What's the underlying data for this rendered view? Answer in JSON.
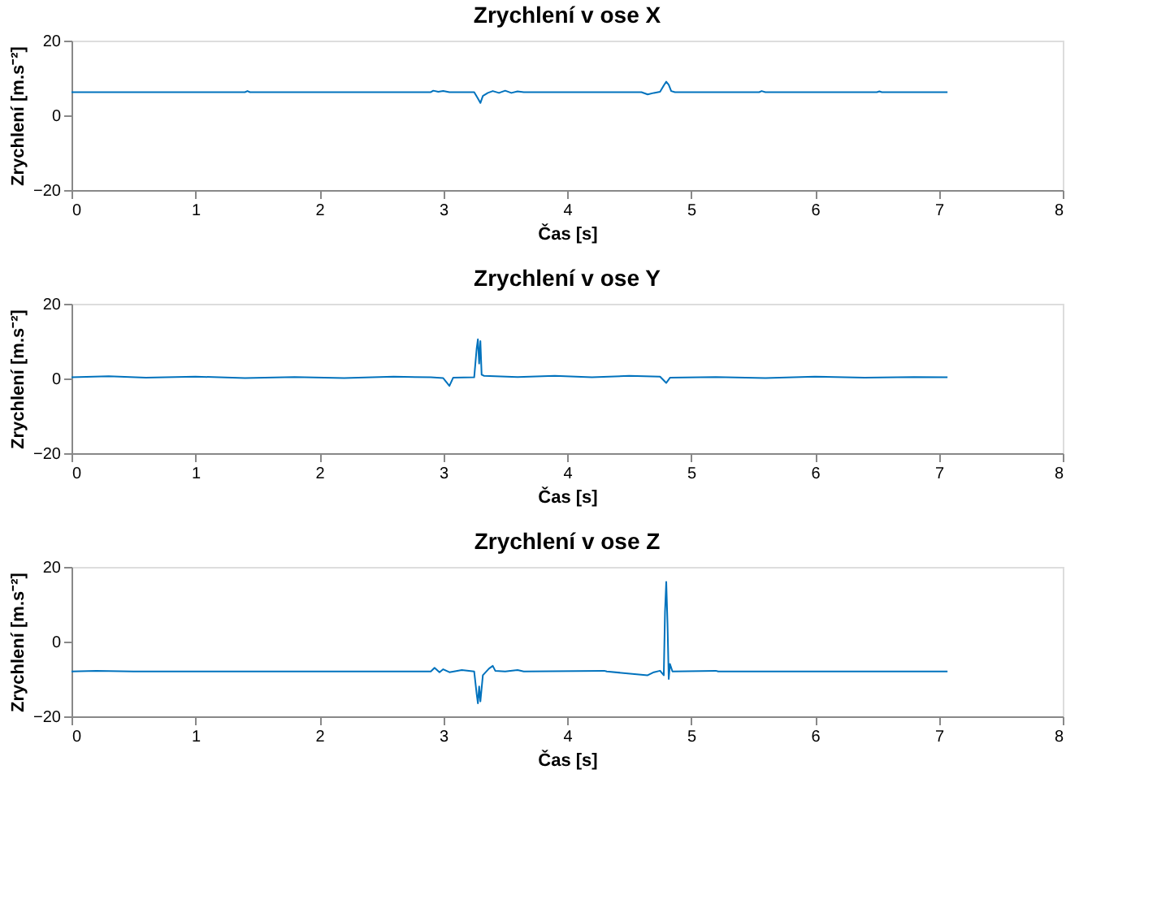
{
  "chart_data": [
    {
      "type": "line",
      "title": "Zrychlení v ose X",
      "xlabel": "Čas [s]",
      "ylabel": "Zrychlení [m.s⁻²]",
      "xlim": [
        0,
        8
      ],
      "xticks": [
        0,
        1,
        2,
        3,
        4,
        5,
        6,
        7,
        8
      ],
      "ylim": [
        -20,
        20
      ],
      "yticks": [
        -20,
        0,
        20
      ],
      "grid": false,
      "series": [
        {
          "color": "#0072bd",
          "x": [
            0,
            1.4,
            1.42,
            1.44,
            2.9,
            2.92,
            2.96,
            3.0,
            3.05,
            3.25,
            3.28,
            3.3,
            3.32,
            3.36,
            3.4,
            3.45,
            3.5,
            3.55,
            3.6,
            3.65,
            4.6,
            4.65,
            4.7,
            4.75,
            4.78,
            4.8,
            4.82,
            4.84,
            4.87,
            5.55,
            5.57,
            5.6,
            6.5,
            6.52,
            6.54,
            7.07
          ],
          "values": [
            6.2,
            6.2,
            6.5,
            6.2,
            6.2,
            6.6,
            6.3,
            6.5,
            6.2,
            6.2,
            4.5,
            3.3,
            5.2,
            6.0,
            6.5,
            6.0,
            6.6,
            6.0,
            6.4,
            6.2,
            6.2,
            5.6,
            6.0,
            6.3,
            8.0,
            9.0,
            8.2,
            6.5,
            6.2,
            6.2,
            6.5,
            6.2,
            6.2,
            6.4,
            6.2,
            6.2
          ]
        }
      ]
    },
    {
      "type": "line",
      "title": "Zrychlení v ose Y",
      "xlabel": "Čas [s]",
      "ylabel": "Zrychlení [m.s⁻²]",
      "xlim": [
        0,
        8
      ],
      "xticks": [
        0,
        1,
        2,
        3,
        4,
        5,
        6,
        7,
        8
      ],
      "ylim": [
        -20,
        20
      ],
      "yticks": [
        -20,
        0,
        20
      ],
      "grid": false,
      "series": [
        {
          "color": "#0072bd",
          "x": [
            0,
            0.3,
            0.6,
            1.0,
            1.4,
            1.8,
            2.2,
            2.6,
            2.9,
            3.0,
            3.05,
            3.08,
            3.25,
            3.27,
            3.28,
            3.29,
            3.3,
            3.31,
            3.33,
            3.6,
            3.9,
            4.2,
            4.5,
            4.75,
            4.8,
            4.83,
            5.2,
            5.6,
            6.0,
            6.4,
            6.8,
            7.07
          ],
          "values": [
            0.3,
            0.6,
            0.2,
            0.5,
            0.1,
            0.4,
            0.1,
            0.5,
            0.3,
            0.1,
            -2.0,
            0.2,
            0.3,
            8.0,
            10.5,
            4.0,
            10,
            1.0,
            0.7,
            0.4,
            0.7,
            0.3,
            0.7,
            0.5,
            -1.2,
            0.2,
            0.4,
            0.1,
            0.5,
            0.2,
            0.4,
            0.3
          ]
        }
      ]
    },
    {
      "type": "line",
      "title": "Zrychlení v ose Z",
      "xlabel": "Čas [s]",
      "ylabel": "Zrychlení [m.s⁻²]",
      "xlim": [
        0,
        8
      ],
      "xticks": [
        0,
        1,
        2,
        3,
        4,
        5,
        6,
        7,
        8
      ],
      "ylim": [
        -20,
        20
      ],
      "yticks": [
        -20,
        0,
        20
      ],
      "grid": false,
      "series": [
        {
          "color": "#0072bd",
          "x": [
            0,
            0.2,
            0.5,
            1.4,
            2.9,
            2.93,
            2.97,
            3.0,
            3.05,
            3.15,
            3.25,
            3.27,
            3.28,
            3.29,
            3.3,
            3.32,
            3.37,
            3.4,
            3.42,
            3.5,
            3.6,
            3.65,
            4.3,
            4.32,
            4.65,
            4.7,
            4.75,
            4.78,
            4.79,
            4.8,
            4.81,
            4.82,
            4.83,
            4.85,
            5.2,
            5.22,
            6.45,
            7.07
          ],
          "values": [
            -8,
            -7.8,
            -8,
            -8,
            -8,
            -7,
            -8.2,
            -7.4,
            -8.2,
            -7.6,
            -8,
            -14,
            -16.5,
            -12,
            -16,
            -9,
            -7.2,
            -6.5,
            -7.8,
            -8,
            -7.6,
            -8,
            -7.8,
            -8,
            -9.0,
            -8.2,
            -7.8,
            -9,
            8,
            16,
            5,
            -10,
            -6,
            -8,
            -7.8,
            -8,
            -8,
            -8
          ]
        }
      ]
    }
  ]
}
